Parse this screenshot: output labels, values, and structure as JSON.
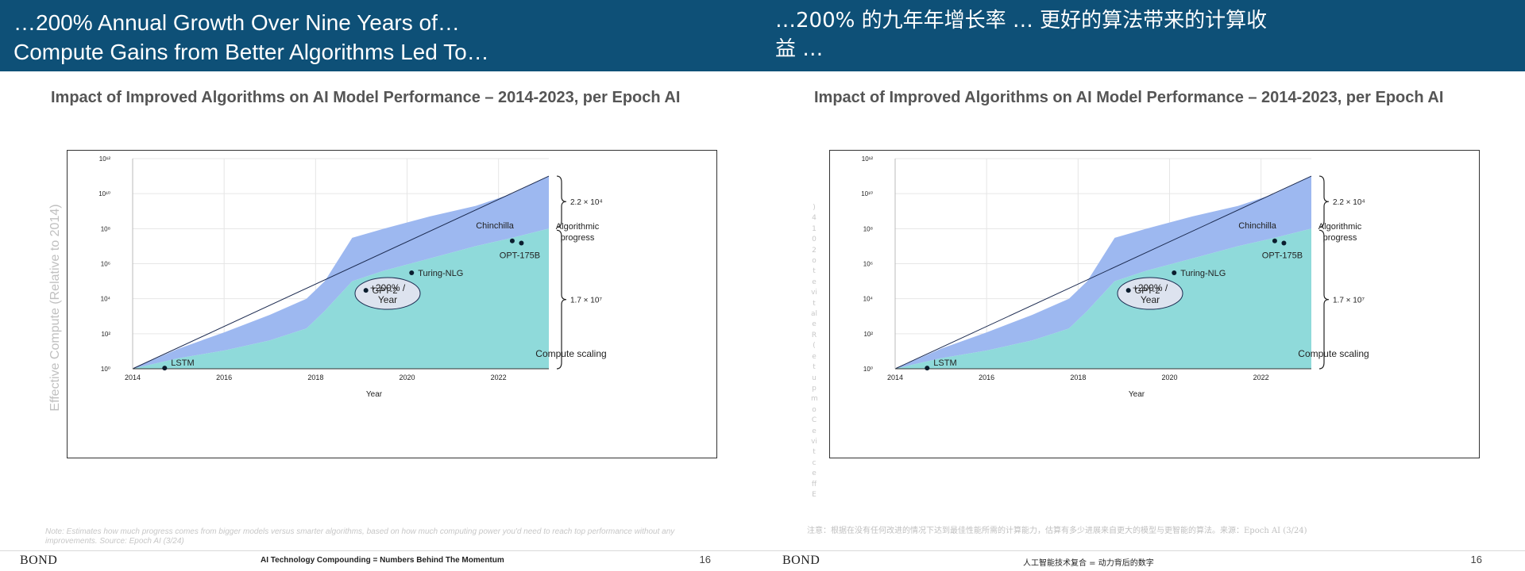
{
  "left": {
    "banner_title": "…200% Annual Growth Over Nine Years of…\nCompute Gains from Better Algorithms Led To…",
    "chart_title": "Impact of Improved Algorithms on AI Model Performance – 2014-2023, per Epoch AI",
    "ylabel": "Effective Compute (Relative to 2014)",
    "note": "Note: Estimates how much progress comes from bigger models versus smarter algorithms, based on how much computing power you'd need to reach top performance without any improvements. Source: Epoch AI (3/24)",
    "footer_logo": "BOND",
    "footer_center": "AI Technology Compounding = Numbers Behind The Momentum",
    "footer_page": "16"
  },
  "right": {
    "banner_title": "…200% 的九年年增长率 … 更好的算法带来的计算收益 …",
    "chart_title": "Impact of Improved Algorithms on AI Model Performance – 2014-2023, per Epoch AI",
    "ylabel_vertical": ")4102 ot evitaleR( etupmoC evitceffE",
    "note": "注意：根据在没有任何改进的情况下达到最佳性能所需的计算能力，估算有多少进展来自更大的模型与更智能的算法。来源：Epoch AI (3/24)",
    "footer_logo": "BOND",
    "footer_center": "人工智能技术复合 = 动力背后的数字",
    "footer_page": "16"
  },
  "colors": {
    "banner": "#0e5077",
    "algorithmic": "#9db8f0",
    "compute": "#8fdada",
    "point": "#0b1d2e"
  },
  "chart_data": {
    "type": "area",
    "x_unit": "year",
    "y_scale": "log10",
    "xlabel": "Year",
    "xlim": [
      2014,
      2023.1
    ],
    "ylim": [
      1,
      1000000000000
    ],
    "xticks": [
      "2014",
      "2016",
      "2018",
      "2020",
      "2022"
    ],
    "yticks": [
      "10⁰",
      "10²",
      "10⁴",
      "10⁶",
      "10⁸",
      "10¹⁰",
      "10¹²"
    ],
    "grid": true,
    "series": [
      {
        "name": "Compute scaling",
        "x": [
          2014,
          2015.0,
          2016.0,
          2017.0,
          2017.8,
          2018.2,
          2018.8,
          2019.5,
          2020.5,
          2021.5,
          2022.3,
          2023.1
        ],
        "y": [
          1,
          4,
          11,
          42,
          200,
          2000,
          100000,
          400000,
          2000000,
          10000000,
          30000000,
          100000000
        ]
      },
      {
        "name": "Algorithmic progress",
        "x": [
          2014,
          2015.0,
          2016.0,
          2017.0,
          2017.8,
          2018.2,
          2018.8,
          2019.5,
          2020.5,
          2021.5,
          2022.3,
          2023.1
        ],
        "y": [
          1,
          14,
          120,
          1200,
          10000,
          100000,
          30000000,
          100000000,
          500000000,
          2000000000,
          10000000000,
          100000000000
        ]
      }
    ],
    "points": [
      {
        "label": "LSTM",
        "x": 2014.7,
        "y": 1.1
      },
      {
        "label": "GPT-2",
        "x": 2019.1,
        "y": 30000
      },
      {
        "label": "Turing-NLG",
        "x": 2020.1,
        "y": 300000
      },
      {
        "label": "Chinchilla",
        "x": 2022.3,
        "y": 20000000
      },
      {
        "label": "OPT-175B",
        "x": 2022.5,
        "y": 15000000
      }
    ],
    "annotations": {
      "area_labels": [
        "Algorithmic\nprogress",
        "Compute scaling"
      ],
      "growth_label": "+200% /\nYear",
      "bracket_upper": "2.2 × 10⁴",
      "bracket_lower": "1.7 × 10⁷"
    }
  }
}
